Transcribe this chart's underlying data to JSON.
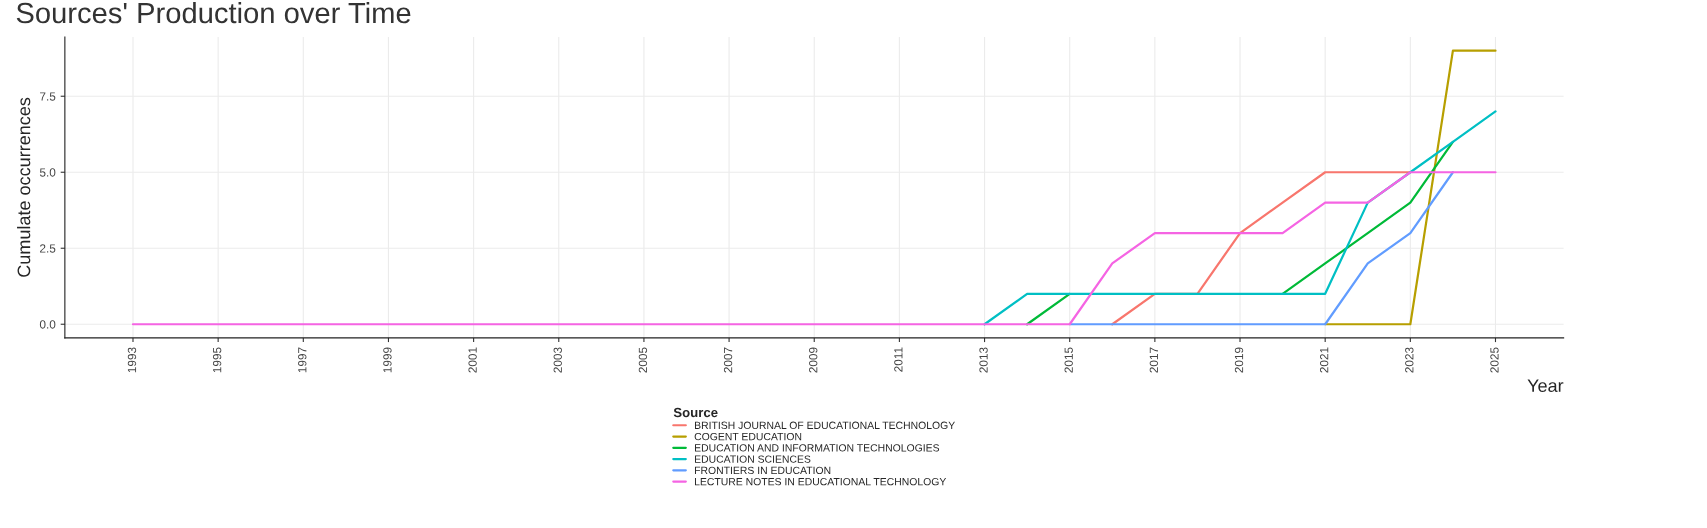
{
  "chart_data": {
    "type": "line",
    "title": "Sources' Production over Time",
    "xlabel": "Year",
    "ylabel": "Cumulate occurrences",
    "legend_title": "Source",
    "x": [
      1993,
      1994,
      1995,
      1996,
      1997,
      1998,
      1999,
      2000,
      2001,
      2002,
      2003,
      2004,
      2005,
      2006,
      2007,
      2008,
      2009,
      2010,
      2011,
      2012,
      2013,
      2014,
      2015,
      2016,
      2017,
      2018,
      2019,
      2020,
      2021,
      2022,
      2023,
      2024,
      2025
    ],
    "series": [
      {
        "name": "BRITISH JOURNAL OF EDUCATIONAL TECHNOLOGY",
        "color": "#f8766d",
        "values": [
          null,
          null,
          null,
          null,
          null,
          null,
          null,
          null,
          null,
          null,
          null,
          null,
          null,
          null,
          null,
          null,
          null,
          null,
          null,
          null,
          null,
          null,
          null,
          0,
          1,
          1,
          3,
          4,
          5,
          5,
          5,
          null,
          null
        ]
      },
      {
        "name": "COGENT EDUCATION",
        "color": "#b79f00",
        "values": [
          null,
          null,
          null,
          null,
          null,
          null,
          null,
          null,
          null,
          null,
          null,
          null,
          null,
          null,
          null,
          null,
          null,
          null,
          null,
          null,
          null,
          null,
          null,
          null,
          null,
          null,
          null,
          null,
          0,
          0,
          0,
          9,
          9
        ]
      },
      {
        "name": "EDUCATION AND INFORMATION TECHNOLOGIES",
        "color": "#00ba38",
        "values": [
          null,
          null,
          null,
          null,
          null,
          null,
          null,
          null,
          null,
          null,
          null,
          null,
          null,
          null,
          null,
          null,
          null,
          null,
          null,
          null,
          null,
          0,
          1,
          null,
          null,
          null,
          null,
          1,
          2,
          3,
          4,
          6,
          null
        ]
      },
      {
        "name": "EDUCATION SCIENCES",
        "color": "#00bfc4",
        "values": [
          null,
          null,
          null,
          null,
          null,
          null,
          null,
          null,
          null,
          null,
          null,
          null,
          null,
          null,
          null,
          null,
          null,
          null,
          null,
          null,
          0,
          1,
          1,
          1,
          1,
          1,
          1,
          1,
          1,
          4,
          5,
          6,
          7
        ]
      },
      {
        "name": "FRONTIERS IN EDUCATION",
        "color": "#619cff",
        "values": [
          null,
          null,
          null,
          null,
          null,
          null,
          null,
          null,
          null,
          null,
          null,
          null,
          null,
          null,
          null,
          null,
          null,
          null,
          null,
          null,
          null,
          null,
          0,
          0,
          0,
          0,
          0,
          0,
          0,
          2,
          3,
          5,
          null
        ]
      },
      {
        "name": "LECTURE NOTES IN EDUCATIONAL TECHNOLOGY",
        "color": "#f564e3",
        "values": [
          0,
          0,
          0,
          0,
          0,
          0,
          0,
          0,
          0,
          0,
          0,
          0,
          0,
          0,
          0,
          0,
          0,
          0,
          0,
          0,
          0,
          0,
          0,
          2,
          3,
          3,
          3,
          3,
          4,
          4,
          5,
          5,
          5
        ]
      }
    ],
    "xlim": [
      1991.4,
      2026.6
    ],
    "xticks": [
      1993,
      1995,
      1997,
      1999,
      2001,
      2003,
      2005,
      2007,
      2009,
      2011,
      2013,
      2015,
      2017,
      2019,
      2021,
      2023,
      2025
    ],
    "ylim": [
      -0.45,
      9.45
    ],
    "yticks": [
      {
        "value": 0,
        "label": "0.0"
      },
      {
        "value": 2.5,
        "label": "2.5"
      },
      {
        "value": 5,
        "label": "5.0"
      },
      {
        "value": 7.5,
        "label": "7.5"
      }
    ],
    "grid": true,
    "legend": "bottom",
    "marker": "none",
    "line_style": "solid"
  }
}
